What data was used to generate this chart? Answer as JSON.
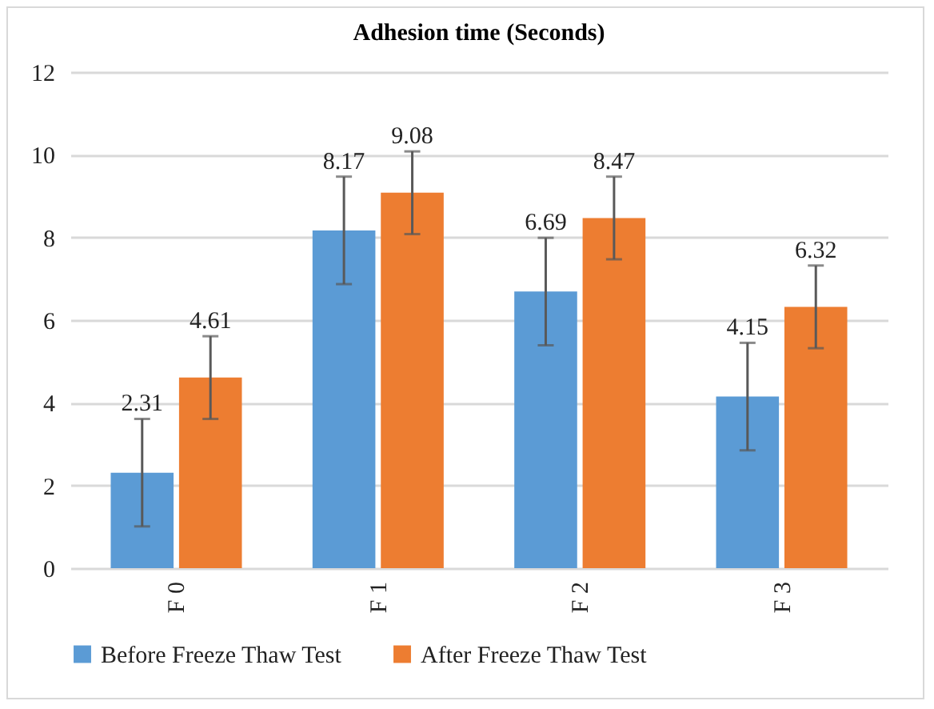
{
  "chart_data": {
    "type": "bar",
    "title": "Adhesion time (Seconds)",
    "categories": [
      "F 0",
      "F 1",
      "F 2",
      "F 3"
    ],
    "series": [
      {
        "name": "Before Freeze Thaw Test",
        "color": "#5b9bd5",
        "values": [
          2.31,
          8.17,
          6.69,
          4.15
        ],
        "errors": [
          1.3,
          1.3,
          1.3,
          1.3
        ]
      },
      {
        "name": "After Freeze Thaw Test",
        "color": "#ed7d31",
        "values": [
          4.61,
          9.08,
          8.47,
          6.32
        ],
        "errors": [
          1.0,
          1.0,
          1.0,
          1.0
        ]
      }
    ],
    "ylim": [
      0,
      12
    ],
    "yticks": [
      0,
      2,
      4,
      6,
      8,
      10,
      12
    ],
    "grid": "y",
    "legend": "bottom",
    "data_labels": true
  }
}
